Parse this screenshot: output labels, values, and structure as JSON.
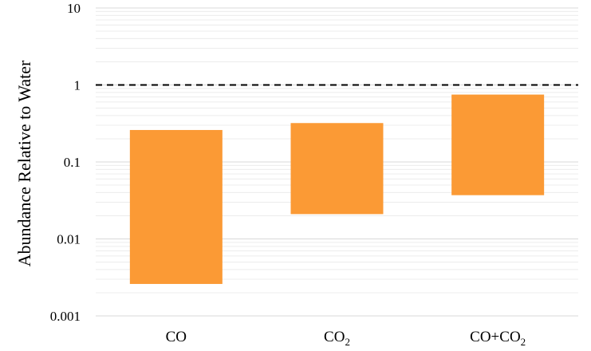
{
  "chart_data": {
    "type": "bar",
    "subtype": "floating-range",
    "scale": "log",
    "ylabel": "Abundance Relative to Water",
    "ylim": [
      0.001,
      10
    ],
    "ytick_labels": [
      "10",
      "1",
      "0.1",
      "0.01",
      "0.001"
    ],
    "yticks": [
      10,
      1,
      0.1,
      0.01,
      0.001
    ],
    "grid": true,
    "reference_line": {
      "value": 1,
      "style": "dashed",
      "color": "#000000"
    },
    "categories": [
      {
        "base": "CO",
        "sub": "",
        "tail": ""
      },
      {
        "base": "CO",
        "sub": "2",
        "tail": ""
      },
      {
        "base": "CO+CO",
        "sub": "2",
        "tail": ""
      }
    ],
    "ranges": [
      {
        "low": 0.0026,
        "high": 0.26
      },
      {
        "low": 0.021,
        "high": 0.32
      },
      {
        "low": 0.037,
        "high": 0.75
      }
    ],
    "bar_color": "#fb9a35"
  }
}
